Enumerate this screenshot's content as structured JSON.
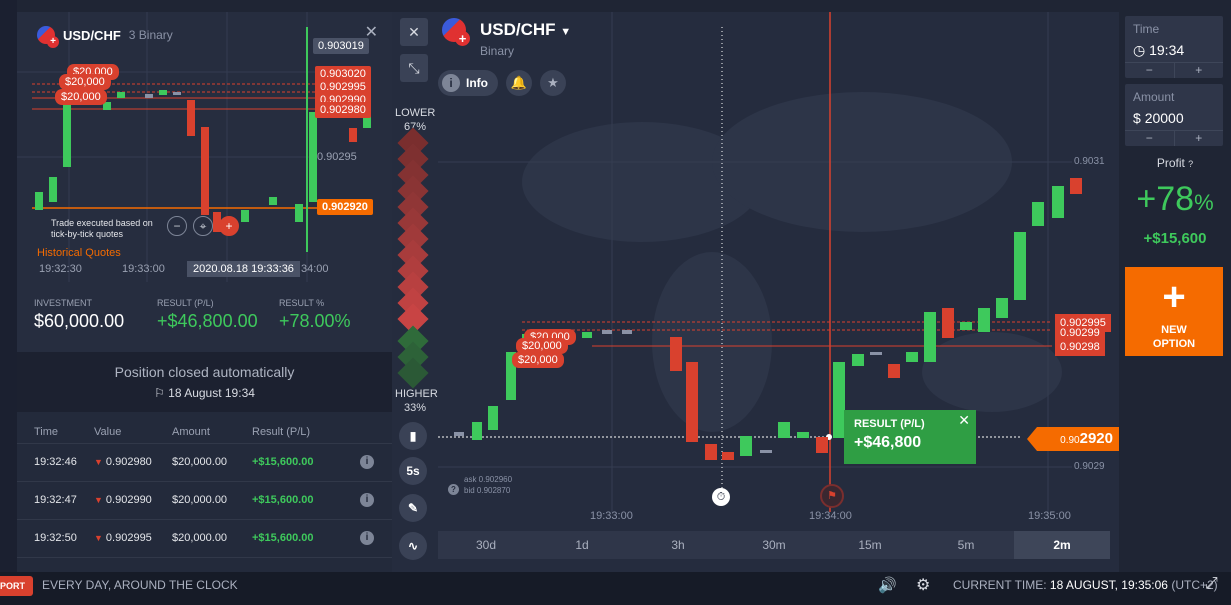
{
  "mini_chart": {
    "pair": "USD/CHF",
    "mode": "3 Binary",
    "price_tags": [
      "0.903019",
      "0.903020",
      "0.902995",
      "0.902990",
      "0.902980",
      "0.90295",
      "0.902920"
    ],
    "investment_pills": [
      "$20,000",
      "$20,000",
      "$20,000"
    ],
    "trade_note": "Trade executed based on tick-by-tick quotes",
    "historical_quotes": "Historical Quotes",
    "time_labels": [
      "19:32:30",
      "19:33:00",
      "34:00"
    ],
    "cursor_date": "2020.08.18 19:33:36"
  },
  "stats": {
    "investment_label": "INVESTMENT",
    "investment_value": "$60,000.00",
    "result_label": "RESULT (P/L)",
    "result_value": "+$46,800.00",
    "result_pct_label": "RESULT %",
    "result_pct_value": "+78.00%"
  },
  "closed": {
    "title": "Position closed automatically",
    "date": "18 August 19:34"
  },
  "table": {
    "headers": [
      "Time",
      "Value",
      "Amount",
      "Result (P/L)"
    ],
    "rows": [
      {
        "time": "19:32:46",
        "value": "0.902980",
        "amount": "$20,000.00",
        "result": "+$15,600.00"
      },
      {
        "time": "19:32:47",
        "value": "0.902990",
        "amount": "$20,000.00",
        "result": "+$15,600.00"
      },
      {
        "time": "19:32:50",
        "value": "0.902995",
        "amount": "$20,000.00",
        "result": "+$15,600.00"
      }
    ]
  },
  "main_chart": {
    "pair": "USD/CHF",
    "type": "Binary",
    "info_label": "Info",
    "lower_label": "LOWER",
    "lower_pct": "67%",
    "higher_label": "HIGHER",
    "higher_pct": "33%",
    "interval_btn": "5s",
    "axis_prices": [
      "0.9031",
      "0.9029"
    ],
    "price_tags": [
      "0.902995",
      "0.90299",
      "0.90298"
    ],
    "investment_pills": [
      "$20,000",
      "$20,000",
      "$20,000"
    ],
    "current_price_prefix": "0.90",
    "current_price_main": "2920",
    "result_label": "RESULT (P/L)",
    "result_value": "+$46,800",
    "ask": "ask 0.902960",
    "bid": "bid 0.902870",
    "time_labels": [
      "19:33:00",
      "19:34:00",
      "19:35:00"
    ],
    "periods": [
      "30d",
      "1d",
      "3h",
      "30m",
      "15m",
      "5m",
      "2m"
    ],
    "active_period": "2m"
  },
  "right_panel": {
    "time_label": "Time",
    "time_value": "19:34",
    "amount_label": "Amount",
    "amount_currency": "$",
    "amount_value": "20000",
    "minus": "−",
    "plus": "+",
    "profit_label": "Profit",
    "profit_pct": "+78",
    "profit_pct_sign": "%",
    "profit_amount": "+$15,600",
    "new_option_line1": "NEW",
    "new_option_line2": "OPTION"
  },
  "bottom_bar": {
    "support": "PORT",
    "tagline": "EVERY DAY, AROUND THE CLOCK",
    "current_time_label": "CURRENT TIME:",
    "current_time_value": "18 AUGUST, 19:35:06",
    "timezone": "(UTC+2)"
  },
  "colors": {
    "accent": "#f56b00",
    "up": "#3ec95c",
    "down": "#d9412e",
    "background": "#252c3e"
  }
}
